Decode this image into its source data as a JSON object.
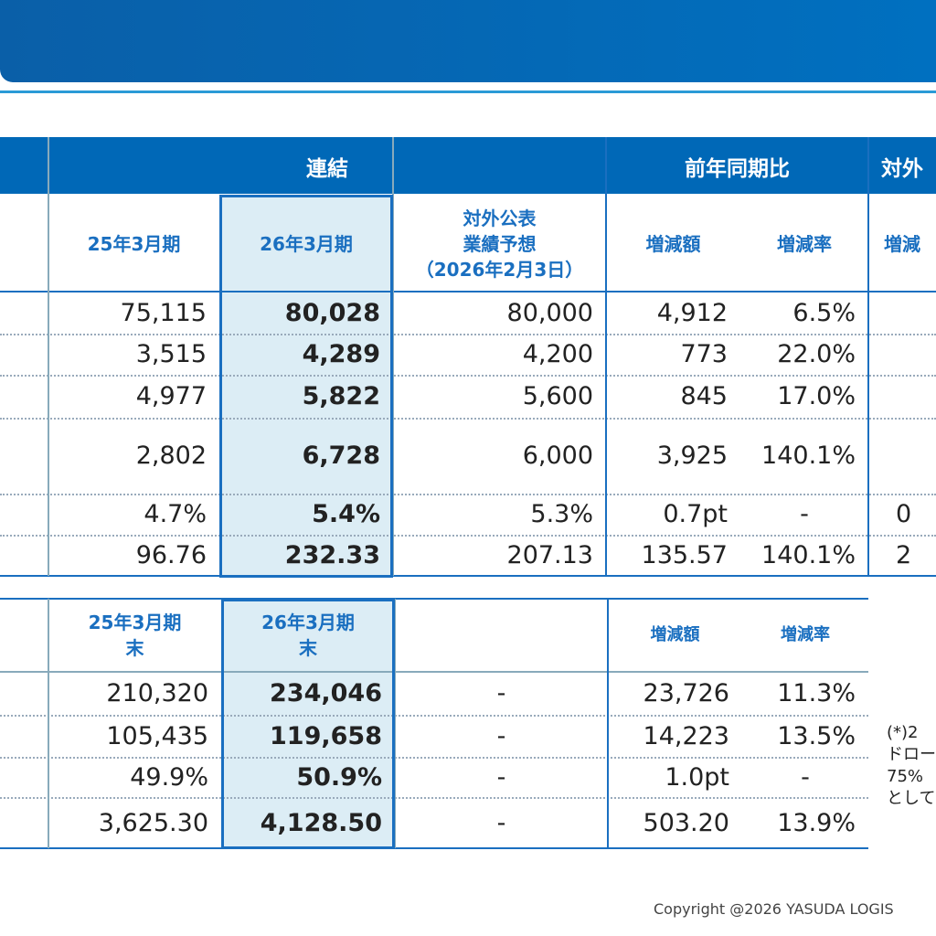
{
  "table1": {
    "header": [
      "連結",
      "前年同期比",
      "対外"
    ],
    "subheader": [
      [
        "25年3月期"
      ],
      [
        "26年3月期"
      ],
      [
        "対外公表",
        "業績予想",
        "（2026年2月3日）"
      ],
      [
        "増減額"
      ],
      [
        "増減率"
      ],
      [
        "増減"
      ]
    ],
    "rows": [
      [
        "75,115",
        "80,028",
        "80,000",
        "4,912",
        "6.5%"
      ],
      [
        "3,515",
        "4,289",
        "4,200",
        "773",
        "22.0%"
      ],
      [
        "4,977",
        "5,822",
        "5,600",
        "845",
        "17.0%"
      ],
      [
        "2,802",
        "6,728",
        "6,000",
        "3,925",
        "140.1%"
      ],
      [
        "4.7%",
        "5.4%",
        "5.3%",
        "0.7pt",
        "-",
        "0"
      ],
      [
        "96.76",
        "232.33",
        "207.13",
        "135.57",
        "140.1%",
        "2"
      ]
    ]
  },
  "table2": {
    "subheader": [
      [
        "25年3月期",
        "末"
      ],
      [
        "26年3月期",
        "末"
      ],
      null,
      [
        "増減額"
      ],
      [
        "増減率"
      ]
    ],
    "rows": [
      [
        "210,320",
        "234,046",
        "-",
        "23,726",
        "11.3%"
      ],
      [
        "105,435",
        "119,658",
        "-",
        "14,223",
        "13.5%"
      ],
      [
        "49.9%",
        "50.9%",
        "-",
        "1.0pt",
        "-"
      ],
      [
        "3,625.30",
        "4,128.50",
        "-",
        "503.20",
        "13.9%"
      ]
    ]
  },
  "note": [
    "(*)2",
    "ドロー",
    "75%",
    "として"
  ],
  "copyright": "Copyright @2026 YASUDA LOGIS"
}
